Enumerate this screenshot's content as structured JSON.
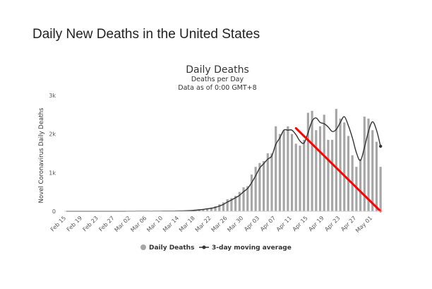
{
  "page": {
    "heading": "Daily New Deaths in the United States"
  },
  "chart_data": {
    "type": "bar",
    "title": "Daily Deaths",
    "subtitle_lines": [
      "Deaths per Day",
      "Data as of 0:00 GMT+8"
    ],
    "ylabel": "Novel Coronavirus Daily Deaths",
    "xlabel": "",
    "ylim": [
      0,
      3000
    ],
    "yticks": [
      {
        "value": 0,
        "label": "0"
      },
      {
        "value": 1000,
        "label": "1k"
      },
      {
        "value": 2000,
        "label": "2k"
      },
      {
        "value": 3000,
        "label": "3k"
      }
    ],
    "grid": false,
    "legend_position": "bottom",
    "x_tick_labels": [
      "Feb 15",
      "Feb 19",
      "Feb 23",
      "Feb 27",
      "Mar 02",
      "Mar 06",
      "Mar 10",
      "Mar 14",
      "Mar 18",
      "Mar 22",
      "Mar 26",
      "Mar 30",
      "Apr 03",
      "Apr 07",
      "Apr 11",
      "Apr 15",
      "Apr 19",
      "Apr 23",
      "Apr 27",
      "May 01"
    ],
    "categories": [
      "Feb 15",
      "Feb 16",
      "Feb 17",
      "Feb 18",
      "Feb 19",
      "Feb 20",
      "Feb 21",
      "Feb 22",
      "Feb 23",
      "Feb 24",
      "Feb 25",
      "Feb 26",
      "Feb 27",
      "Feb 28",
      "Feb 29",
      "Mar 01",
      "Mar 02",
      "Mar 03",
      "Mar 04",
      "Mar 05",
      "Mar 06",
      "Mar 07",
      "Mar 08",
      "Mar 09",
      "Mar 10",
      "Mar 11",
      "Mar 12",
      "Mar 13",
      "Mar 14",
      "Mar 15",
      "Mar 16",
      "Mar 17",
      "Mar 18",
      "Mar 19",
      "Mar 20",
      "Mar 21",
      "Mar 22",
      "Mar 23",
      "Mar 24",
      "Mar 25",
      "Mar 26",
      "Mar 27",
      "Mar 28",
      "Mar 29",
      "Mar 30",
      "Mar 31",
      "Apr 01",
      "Apr 02",
      "Apr 03",
      "Apr 04",
      "Apr 05",
      "Apr 06",
      "Apr 07",
      "Apr 08",
      "Apr 09",
      "Apr 10",
      "Apr 11",
      "Apr 12",
      "Apr 13",
      "Apr 14",
      "Apr 15",
      "Apr 16",
      "Apr 17",
      "Apr 18",
      "Apr 19",
      "Apr 20",
      "Apr 21",
      "Apr 22",
      "Apr 23",
      "Apr 24",
      "Apr 25",
      "Apr 26",
      "Apr 27",
      "Apr 28",
      "Apr 29",
      "Apr 30",
      "May 01",
      "May 02",
      "May 03"
    ],
    "series": [
      {
        "name": "Daily Deaths",
        "kind": "bar",
        "color": "#a6a6a6",
        "values": [
          0,
          0,
          0,
          0,
          0,
          0,
          0,
          0,
          0,
          0,
          0,
          0,
          0,
          0,
          1,
          0,
          2,
          3,
          4,
          2,
          2,
          3,
          2,
          4,
          6,
          5,
          8,
          10,
          11,
          10,
          20,
          25,
          35,
          50,
          60,
          80,
          95,
          130,
          180,
          230,
          310,
          340,
          400,
          500,
          620,
          650,
          950,
          1150,
          1250,
          1300,
          1500,
          1500,
          2200,
          2000,
          2100,
          2200,
          2000,
          1750,
          1700,
          1850,
          2550,
          2600,
          2100,
          2200,
          2500,
          1850,
          1850,
          2650,
          2400,
          2300,
          1950,
          1450,
          1150,
          1350,
          2450,
          2400,
          2100,
          1800,
          1150
        ]
      },
      {
        "name": "3-day moving average",
        "kind": "line",
        "color": "#333333",
        "values": [
          0,
          0,
          0,
          0,
          0,
          0,
          0,
          0,
          0,
          0,
          0,
          0,
          0,
          0,
          0,
          1,
          1,
          2,
          3,
          3,
          3,
          2,
          3,
          3,
          5,
          6,
          6,
          8,
          10,
          10,
          14,
          18,
          27,
          37,
          48,
          63,
          78,
          102,
          135,
          180,
          240,
          293,
          350,
          413,
          507,
          590,
          740,
          920,
          1117,
          1233,
          1350,
          1433,
          1733,
          1900,
          2100,
          2100,
          2100,
          1983,
          1817,
          1767,
          2033,
          2333,
          2417,
          2300,
          2267,
          2183,
          2067,
          2117,
          2300,
          2450,
          2217,
          1900,
          1517,
          1317,
          1650,
          2067,
          2317,
          2100,
          1683
        ]
      }
    ],
    "annotations": [
      {
        "type": "trend-line",
        "color": "#ff0000",
        "from": {
          "x": "Apr 12",
          "y": 2150
        },
        "to": {
          "x": "May 03",
          "y": 0
        }
      }
    ]
  }
}
